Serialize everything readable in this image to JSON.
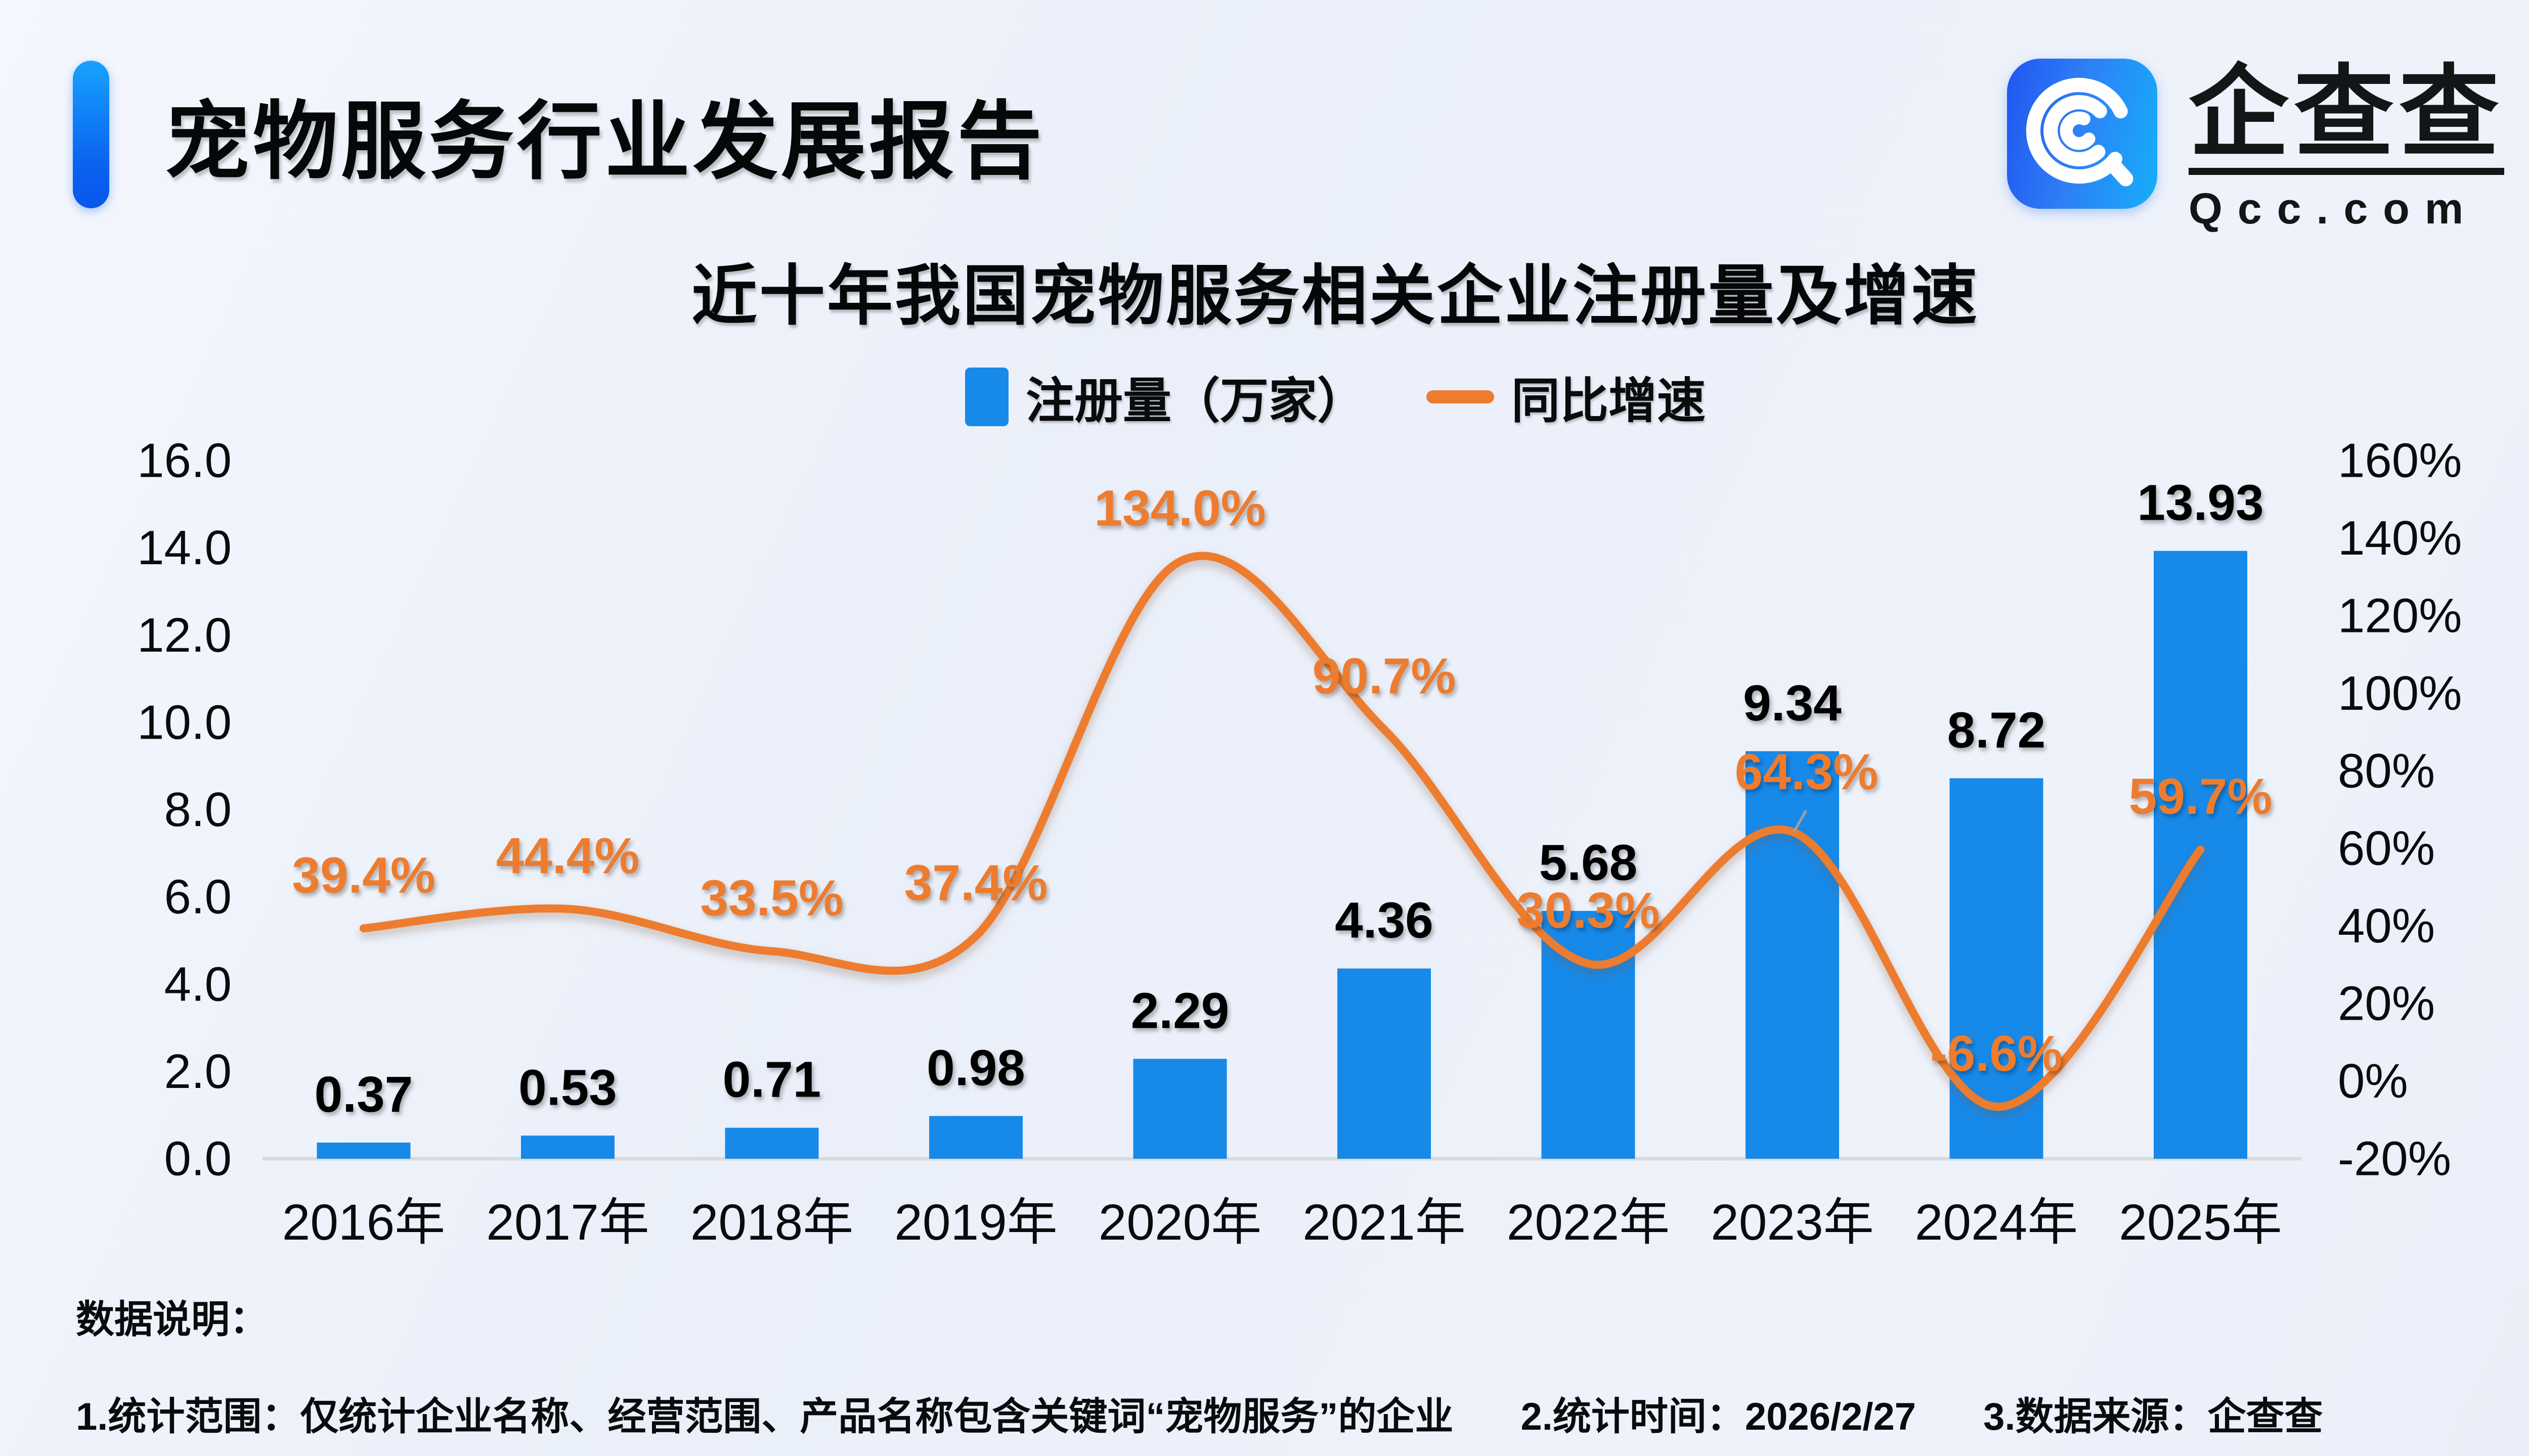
{
  "header": {
    "title": "宠物服务行业发展报告"
  },
  "logo": {
    "name": "企查查",
    "domain": "Qcc.com"
  },
  "chart": {
    "title": "近十年我国宠物服务相关企业注册量及增速",
    "legend": {
      "bars": "注册量（万家）",
      "line": "同比增速"
    }
  },
  "chart_data": {
    "type": "bar+line",
    "title": "近十年我国宠物服务相关企业注册量及增速",
    "categories": [
      "2016年",
      "2017年",
      "2018年",
      "2019年",
      "2020年",
      "2021年",
      "2022年",
      "2023年",
      "2024年",
      "2025年"
    ],
    "series": [
      {
        "name": "注册量（万家）",
        "type": "bar",
        "axis": "left",
        "values": [
          0.37,
          0.53,
          0.71,
          0.98,
          2.29,
          4.36,
          5.68,
          9.34,
          8.72,
          13.93
        ],
        "labels": [
          "0.37",
          "0.53",
          "0.71",
          "0.98",
          "2.29",
          "4.36",
          "5.68",
          "9.34",
          "8.72",
          "13.93"
        ]
      },
      {
        "name": "同比增速",
        "type": "line",
        "axis": "right",
        "values": [
          39.4,
          44.4,
          33.5,
          37.4,
          134.0,
          90.7,
          30.3,
          64.3,
          -6.6,
          59.7
        ],
        "labels": [
          "39.4%",
          "44.4%",
          "33.5%",
          "37.4%",
          "134.0%",
          "90.7%",
          "30.3%",
          "64.3%",
          "-6.6%",
          "59.7%"
        ]
      }
    ],
    "left_axis": {
      "min": 0,
      "max": 16,
      "ticks": [
        "16.0",
        "14.0",
        "12.0",
        "10.0",
        "8.0",
        "6.0",
        "4.0",
        "2.0",
        "0.0"
      ]
    },
    "right_axis": {
      "min": -20,
      "max": 160,
      "ticks": [
        "160%",
        "140%",
        "120%",
        "100%",
        "80%",
        "60%",
        "40%",
        "20%",
        "0%",
        "-20%"
      ]
    },
    "grid": false,
    "legend_position": "top"
  },
  "footnotes": {
    "heading": "数据说明：",
    "items": [
      "1.统计范围：仅统计企业名称、经营范围、产品名称包含关键词“宠物服务”的企业",
      "2.统计时间：2026/2/27",
      "3.数据来源：企查查"
    ]
  },
  "colors": {
    "bar": "#1789E9",
    "line": "#ED7C2F",
    "baseline": "#D8DADC",
    "leader": "#9AA0A6"
  }
}
